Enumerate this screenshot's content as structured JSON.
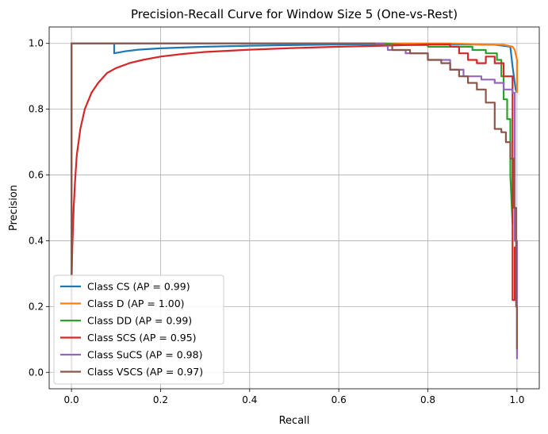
{
  "chart_data": {
    "type": "line",
    "title": "Precision-Recall Curve for Window Size 5 (One-vs-Rest)",
    "xlabel": "Recall",
    "ylabel": "Precision",
    "xlim": [
      -0.05,
      1.05
    ],
    "ylim": [
      -0.05,
      1.05
    ],
    "xticks": [
      "0.0",
      "0.2",
      "0.4",
      "0.6",
      "0.8",
      "1.0"
    ],
    "yticks": [
      "0.0",
      "0.2",
      "0.4",
      "0.6",
      "0.8",
      "1.0"
    ],
    "grid": true,
    "legend_position": "lower-left",
    "series": [
      {
        "name": "Class CS (AP = 0.99)",
        "color": "#1f77b4",
        "x": [
          0.0,
          0.0,
          0.096,
          0.096,
          0.12,
          0.15,
          0.2,
          0.3,
          0.4,
          0.5,
          0.6,
          0.7,
          0.8,
          0.9,
          0.95,
          0.985,
          0.99,
          0.995,
          0.997,
          1.0
        ],
        "y": [
          0.0,
          1.0,
          1.0,
          0.97,
          0.976,
          0.981,
          0.985,
          0.99,
          0.993,
          0.995,
          0.997,
          0.998,
          0.998,
          0.997,
          0.996,
          0.99,
          0.93,
          0.88,
          0.86,
          0.85
        ]
      },
      {
        "name": "Class D (AP = 1.00)",
        "color": "#ff7f0e",
        "x": [
          0.0,
          0.0,
          0.3,
          0.6,
          0.85,
          0.9,
          0.95,
          0.97,
          0.98,
          0.99,
          0.995,
          1.0,
          1.0
        ],
        "y": [
          0.0,
          1.0,
          1.0,
          1.0,
          1.0,
          0.998,
          0.996,
          0.996,
          0.993,
          0.99,
          0.98,
          0.95,
          0.85
        ]
      },
      {
        "name": "Class DD (AP = 0.99)",
        "color": "#2ca02c",
        "x": [
          0.0,
          0.0,
          0.5,
          0.7,
          0.75,
          0.8,
          0.8,
          0.9,
          0.9,
          0.93,
          0.93,
          0.955,
          0.955,
          0.965,
          0.965,
          0.97,
          0.97,
          0.978,
          0.978,
          0.985,
          0.985,
          0.99
        ],
        "y": [
          0.0,
          1.0,
          1.0,
          1.0,
          0.995,
          0.995,
          0.99,
          0.99,
          0.98,
          0.98,
          0.97,
          0.97,
          0.95,
          0.95,
          0.9,
          0.9,
          0.83,
          0.83,
          0.77,
          0.77,
          0.6,
          0.45
        ]
      },
      {
        "name": "Class SCS (AP = 0.95)",
        "color": "#d62728",
        "x": [
          0.0,
          0.002,
          0.005,
          0.008,
          0.012,
          0.02,
          0.03,
          0.045,
          0.06,
          0.08,
          0.1,
          0.13,
          0.16,
          0.2,
          0.25,
          0.3,
          0.4,
          0.5,
          0.6,
          0.7,
          0.75,
          0.8,
          0.85,
          0.85,
          0.87,
          0.87,
          0.89,
          0.89,
          0.91,
          0.91,
          0.93,
          0.93,
          0.95,
          0.95,
          0.97,
          0.97,
          0.99,
          0.99,
          0.995,
          0.995,
          1.0
        ],
        "y": [
          0.25,
          0.38,
          0.5,
          0.58,
          0.66,
          0.74,
          0.8,
          0.85,
          0.88,
          0.91,
          0.925,
          0.94,
          0.95,
          0.96,
          0.968,
          0.974,
          0.981,
          0.986,
          0.99,
          0.993,
          0.995,
          0.997,
          0.997,
          0.99,
          0.99,
          0.97,
          0.97,
          0.95,
          0.95,
          0.94,
          0.94,
          0.96,
          0.96,
          0.94,
          0.94,
          0.9,
          0.9,
          0.22,
          0.22,
          0.38,
          0.38
        ]
      },
      {
        "name": "Class SuCS (AP = 0.98)",
        "color": "#9467bd",
        "x": [
          0.0,
          0.0,
          0.7,
          0.71,
          0.71,
          0.75,
          0.75,
          0.8,
          0.8,
          0.85,
          0.85,
          0.88,
          0.88,
          0.92,
          0.92,
          0.95,
          0.95,
          0.97,
          0.97,
          0.99,
          0.99,
          0.995,
          0.995,
          1.0,
          1.0
        ],
        "y": [
          0.0,
          1.0,
          1.0,
          0.99,
          0.98,
          0.98,
          0.97,
          0.97,
          0.95,
          0.95,
          0.92,
          0.92,
          0.9,
          0.9,
          0.89,
          0.89,
          0.88,
          0.88,
          0.86,
          0.86,
          0.85,
          0.85,
          0.4,
          0.4,
          0.04
        ]
      },
      {
        "name": "Class VSCS (AP = 0.97)",
        "color": "#8c564b",
        "x": [
          0.0,
          0.0,
          0.68,
          0.68,
          0.72,
          0.72,
          0.76,
          0.76,
          0.8,
          0.8,
          0.83,
          0.83,
          0.85,
          0.85,
          0.87,
          0.87,
          0.89,
          0.89,
          0.91,
          0.91,
          0.93,
          0.93,
          0.95,
          0.95,
          0.965,
          0.965,
          0.975,
          0.975,
          0.985,
          0.985,
          0.993,
          0.993,
          0.998,
          0.998,
          1.0,
          1.0
        ],
        "y": [
          0.0,
          1.0,
          1.0,
          0.995,
          0.995,
          0.98,
          0.98,
          0.97,
          0.97,
          0.95,
          0.95,
          0.94,
          0.94,
          0.92,
          0.92,
          0.9,
          0.9,
          0.88,
          0.88,
          0.86,
          0.86,
          0.82,
          0.82,
          0.74,
          0.74,
          0.73,
          0.73,
          0.7,
          0.7,
          0.65,
          0.65,
          0.5,
          0.5,
          0.2,
          0.2,
          0.07
        ]
      }
    ]
  }
}
